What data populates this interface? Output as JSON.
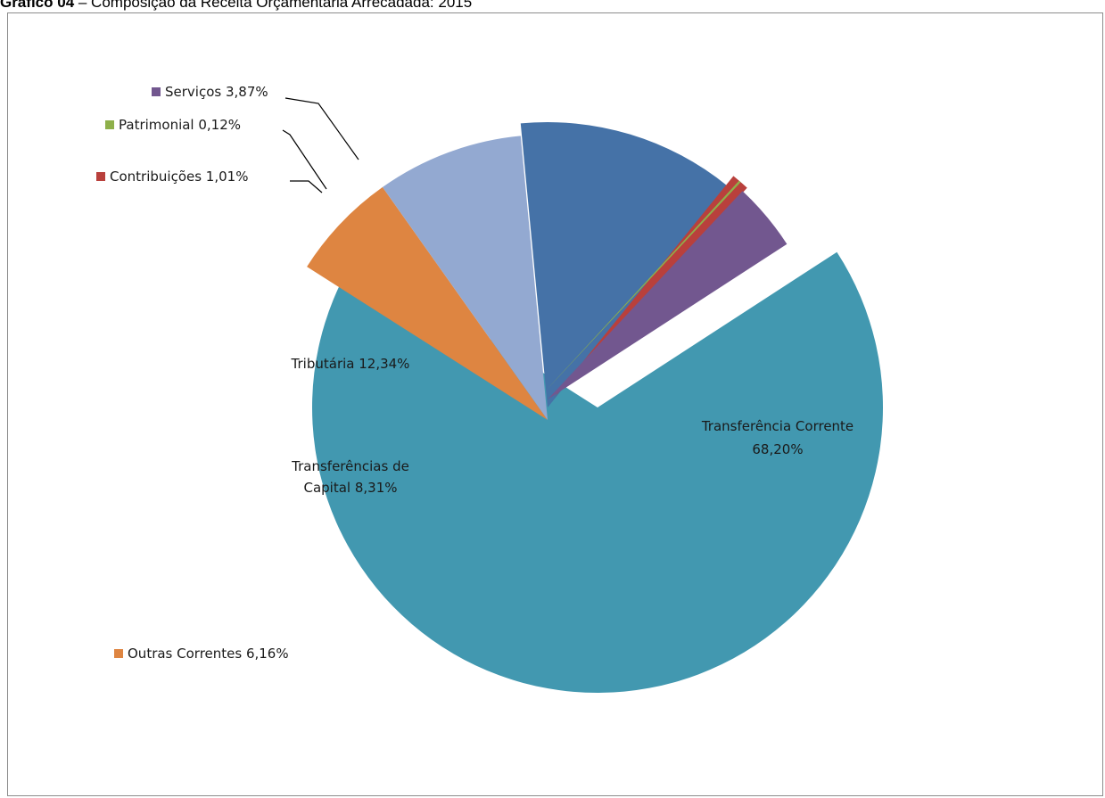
{
  "figure": {
    "caption_bold": "Gráfico 04",
    "caption_rest": " – Composição da Receita Orçamentária Arrecadada: 2015"
  },
  "chart_data": {
    "type": "pie",
    "title": "",
    "slices": [
      {
        "name": "Transferência Corrente",
        "value": 68.2,
        "value_label": "68,20%",
        "color": "#4298B0"
      },
      {
        "name": "Outras Correntes",
        "value": 6.16,
        "value_label": "6,16%",
        "color": "#DE8541"
      },
      {
        "name": "Transferências de Capital",
        "value": 8.31,
        "value_label": "8,31%",
        "color": "#93A9D1"
      },
      {
        "name": "Tributária",
        "value": 12.34,
        "value_label": "12,34%",
        "color": "#4572A7"
      },
      {
        "name": "Contribuições",
        "value": 1.01,
        "value_label": "1,01%",
        "color": "#B9403C"
      },
      {
        "name": "Patrimonial",
        "value": 0.12,
        "value_label": "0,12%",
        "color": "#8EB04A"
      },
      {
        "name": "Serviços",
        "value": 3.87,
        "value_label": "3,87%",
        "color": "#72578F"
      }
    ],
    "legend_placement": "outside labels with markers"
  }
}
